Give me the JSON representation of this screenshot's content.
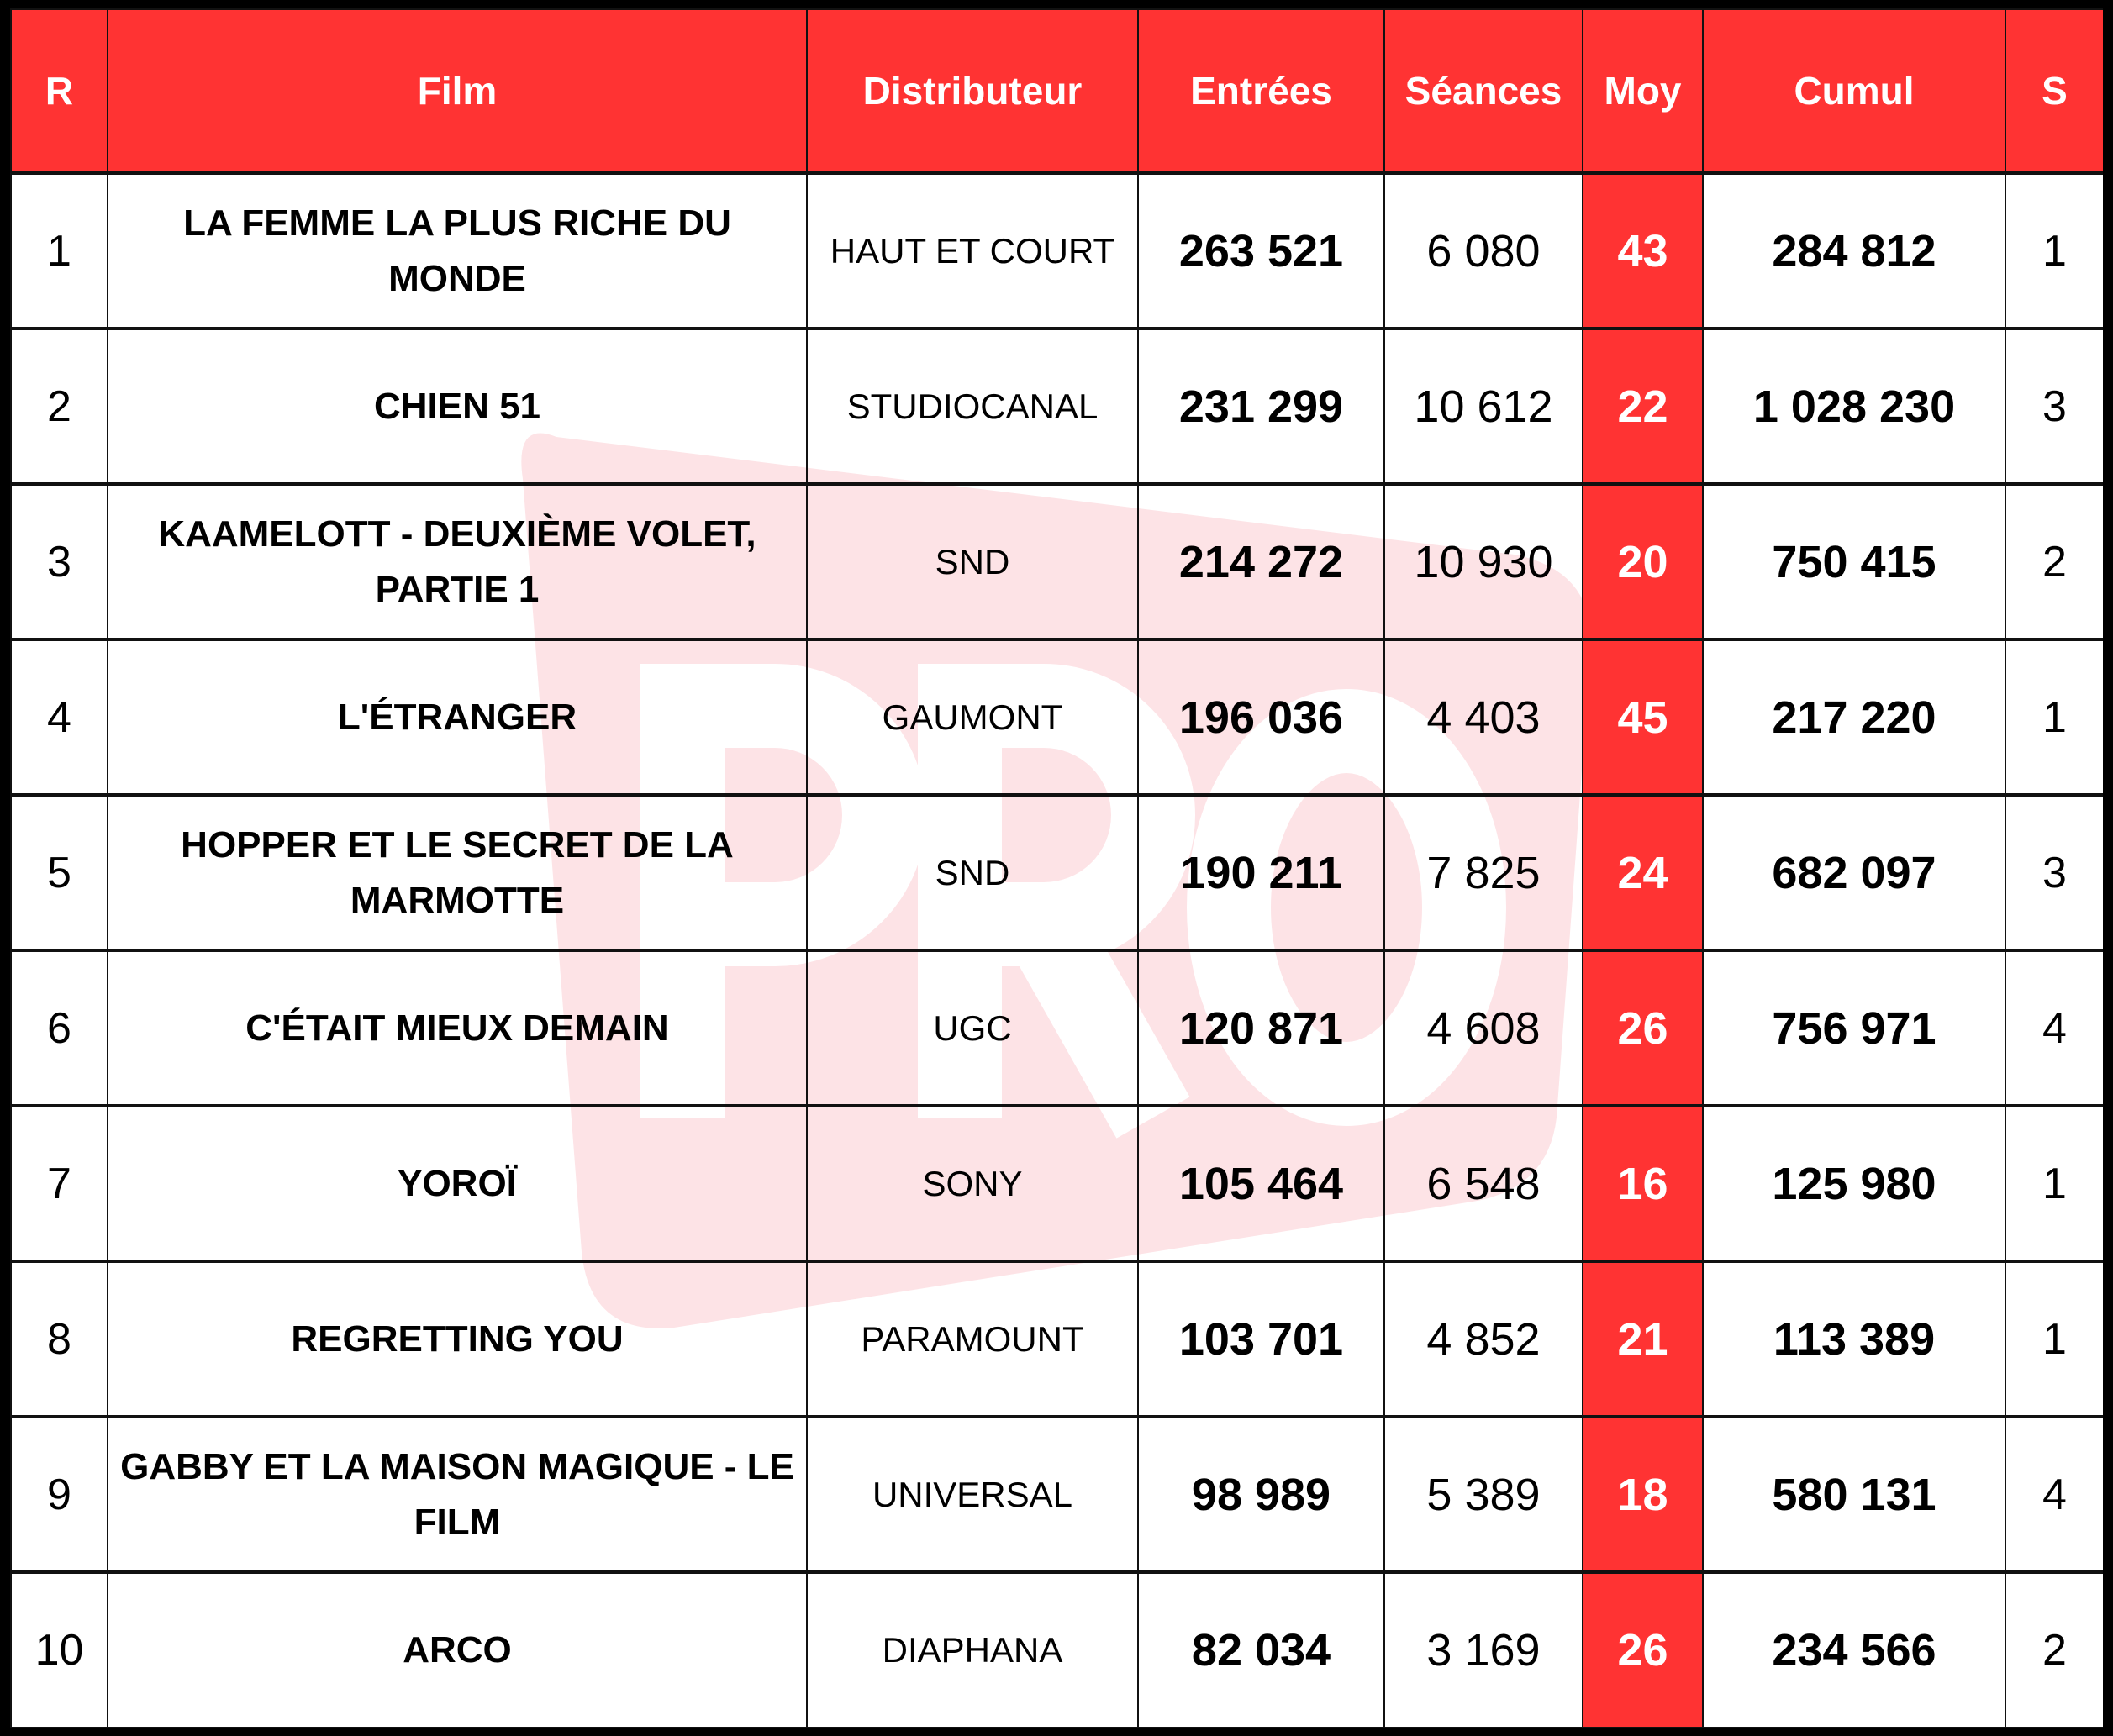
{
  "colors": {
    "header_bg": "#ff3333",
    "header_text": "#ffffff",
    "moy_bg": "#ff3333",
    "watermark": "#fde3e6"
  },
  "watermark": {
    "text": "PRO"
  },
  "headers": [
    "R",
    "Film",
    "Distributeur",
    "Entrées",
    "Séances",
    "Moy",
    "Cumul",
    "S"
  ],
  "rows": [
    {
      "rank": "1",
      "film": "LA FEMME LA PLUS RICHE DU MONDE",
      "dist": "HAUT ET COURT",
      "entrees": "263 521",
      "seances": "6 080",
      "moy": "43",
      "cumul": "284 812",
      "weeks": "1"
    },
    {
      "rank": "2",
      "film": "CHIEN 51",
      "dist": "STUDIOCANAL",
      "entrees": "231 299",
      "seances": "10 612",
      "moy": "22",
      "cumul": "1 028 230",
      "weeks": "3"
    },
    {
      "rank": "3",
      "film": "KAAMELOTT - DEUXIÈME VOLET, PARTIE 1",
      "dist": "SND",
      "entrees": "214 272",
      "seances": "10 930",
      "moy": "20",
      "cumul": "750 415",
      "weeks": "2"
    },
    {
      "rank": "4",
      "film": "L'ÉTRANGER",
      "dist": "GAUMONT",
      "entrees": "196 036",
      "seances": "4 403",
      "moy": "45",
      "cumul": "217 220",
      "weeks": "1"
    },
    {
      "rank": "5",
      "film": "HOPPER ET LE SECRET DE LA MARMOTTE",
      "dist": "SND",
      "entrees": "190 211",
      "seances": "7 825",
      "moy": "24",
      "cumul": "682 097",
      "weeks": "3"
    },
    {
      "rank": "6",
      "film": "C'ÉTAIT MIEUX DEMAIN",
      "dist": "UGC",
      "entrees": "120 871",
      "seances": "4 608",
      "moy": "26",
      "cumul": "756 971",
      "weeks": "4"
    },
    {
      "rank": "7",
      "film": "YOROÏ",
      "dist": "SONY",
      "entrees": "105 464",
      "seances": "6 548",
      "moy": "16",
      "cumul": "125 980",
      "weeks": "1"
    },
    {
      "rank": "8",
      "film": "REGRETTING YOU",
      "dist": "PARAMOUNT",
      "entrees": "103 701",
      "seances": "4 852",
      "moy": "21",
      "cumul": "113 389",
      "weeks": "1"
    },
    {
      "rank": "9",
      "film": "GABBY ET LA MAISON MAGIQUE - LE FILM",
      "dist": "UNIVERSAL",
      "entrees": "98 989",
      "seances": "5 389",
      "moy": "18",
      "cumul": "580 131",
      "weeks": "4"
    },
    {
      "rank": "10",
      "film": "ARCO",
      "dist": "DIAPHANA",
      "entrees": "82 034",
      "seances": "3 169",
      "moy": "26",
      "cumul": "234 566",
      "weeks": "2"
    }
  ]
}
